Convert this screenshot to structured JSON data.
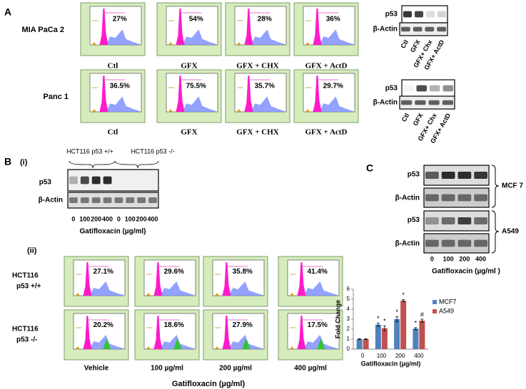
{
  "panel_a": {
    "label": "A",
    "rows": [
      {
        "cell_line": "MIA PaCa 2",
        "percents": [
          "27%",
          "54%",
          "28%",
          "36%"
        ],
        "captions": [
          "Ctl",
          "GFX",
          "GFX + CHX",
          "GFX + ActD"
        ],
        "blot": {
          "rows": [
            "p53",
            "β-Actin"
          ],
          "lanes": [
            "Ctl",
            "GFX",
            "GFX+ Chx",
            "GFX+ ActD"
          ]
        }
      },
      {
        "cell_line": "Panc 1",
        "percents": [
          "36.5%",
          "75.5%",
          "35.7%",
          "29.7%"
        ],
        "captions": [
          "Ctl",
          "GFX",
          "GFX + CHX",
          "GFX + ActD"
        ],
        "blot": {
          "rows": [
            "p53",
            "β-Actin"
          ],
          "lanes": [
            "Ctl",
            "GFX",
            "GFX+ Chx",
            "GFX+ ActD"
          ]
        }
      }
    ]
  },
  "panel_b": {
    "label": "B",
    "sub_i": "(i)",
    "groups": [
      "HCT116  p53 +/+",
      "HCT116  p53 -/-"
    ],
    "blot_rows": [
      "p53",
      "β-Actin"
    ],
    "lanes": [
      "0",
      "100",
      "200",
      "400",
      "0",
      "100",
      "200",
      "400"
    ],
    "xlabel_i": "Gatifloxacin (µg/ml)",
    "sub_ii": "(ii)",
    "rows": [
      {
        "label": [
          "HCT116",
          "p53 +/+"
        ],
        "percents": [
          "27.1%",
          "29.6%",
          "35.8%",
          "41.4%"
        ]
      },
      {
        "label": [
          "HCT116",
          "p53 -/-"
        ],
        "percents": [
          "20.2%",
          "18.6%",
          "27.9%",
          "17.5%"
        ]
      }
    ],
    "captions": [
      "Vehicle",
      "100 µg/ml",
      "200 µg/ml",
      "400 µg/ml"
    ],
    "xlabel_ii": "Gatifloxacin  (µg/ml)"
  },
  "panel_c": {
    "label": "C",
    "blots": [
      {
        "rows": [
          "p53",
          "β-Actin"
        ],
        "cell_line": "MCF 7"
      },
      {
        "rows": [
          "p53",
          "β-Actin"
        ],
        "cell_line": "A549"
      }
    ],
    "lanes": [
      "0",
      "100",
      "200",
      "400"
    ],
    "xlabel": "Gatifloxacin (µg/ml )"
  },
  "chart_data": {
    "type": "bar",
    "ylabel": "Fold Change",
    "xlabel": "Gatifloxacin (µg/ml)",
    "categories": [
      "0",
      "100",
      "200",
      "400"
    ],
    "series": [
      {
        "name": "MCF7",
        "color": "#4f81bd",
        "values": [
          1,
          2.45,
          3.0,
          2.05
        ],
        "errors": [
          0.03,
          0.15,
          0.25,
          0.1
        ],
        "annotations": [
          null,
          "*",
          "*",
          "*"
        ]
      },
      {
        "name": "A549",
        "color": "#c0504d",
        "values": [
          1,
          2.1,
          4.85,
          2.85
        ],
        "errors": [
          0.03,
          0.25,
          0.1,
          0.15
        ],
        "annotations": [
          null,
          "*",
          "*",
          "#"
        ]
      }
    ],
    "ylim": [
      0,
      6
    ],
    "yticks": [
      0,
      1,
      2,
      3,
      4,
      5,
      6
    ],
    "grid": false,
    "legend": "right"
  }
}
